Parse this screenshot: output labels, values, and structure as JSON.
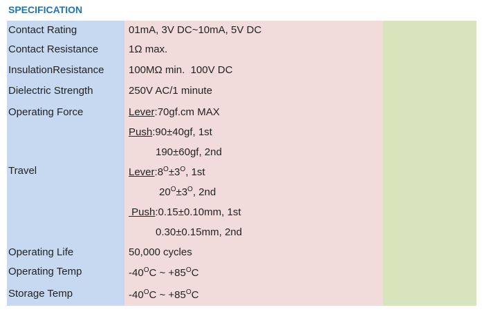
{
  "header": {
    "title": "SPECIFICATION"
  },
  "table": {
    "rows": [
      {
        "label": "Contact Rating",
        "lines": [
          [
            "01mA, 3V DC~10mA, 5V DC"
          ]
        ]
      },
      {
        "label": "Contact Resistance",
        "lines": [
          [
            "1Ω max."
          ]
        ]
      },
      {
        "label": "InsulationResistance",
        "lines": [
          [
            "100MΩ min.  100V DC"
          ]
        ]
      },
      {
        "label": "Dielectric Strength",
        "lines": [
          [
            "250V AC/1 minute"
          ]
        ]
      },
      {
        "label": "Operating Force",
        "lines": [
          [
            "Lever",
            ":70gf.cm MAX"
          ],
          [
            "Push",
            ":90±40gf, 1st"
          ],
          [
            "190±60gf, 2nd"
          ]
        ]
      },
      {
        "label": "Travel",
        "lines": [
          [
            "Lever",
            ":8",
            "O",
            "±3",
            "O",
            ", 1st"
          ],
          [
            "20",
            "O",
            "±3",
            "O",
            ", 2nd"
          ],
          [
            " Push",
            ":0.15±0.10mm, 1st"
          ],
          [
            "0.30±0.15mm, 2nd"
          ]
        ]
      },
      {
        "label": "Operating Life",
        "lines": [
          [
            "50,000 cycles"
          ]
        ]
      },
      {
        "label": "Operating Temp",
        "lines": [
          [
            "-40",
            "O",
            "C ~ +85",
            "O",
            "C"
          ]
        ]
      },
      {
        "label": "Storage Temp",
        "lines": [
          [
            "-40",
            "O",
            "C ~ +85",
            "O",
            "C"
          ]
        ]
      }
    ]
  }
}
